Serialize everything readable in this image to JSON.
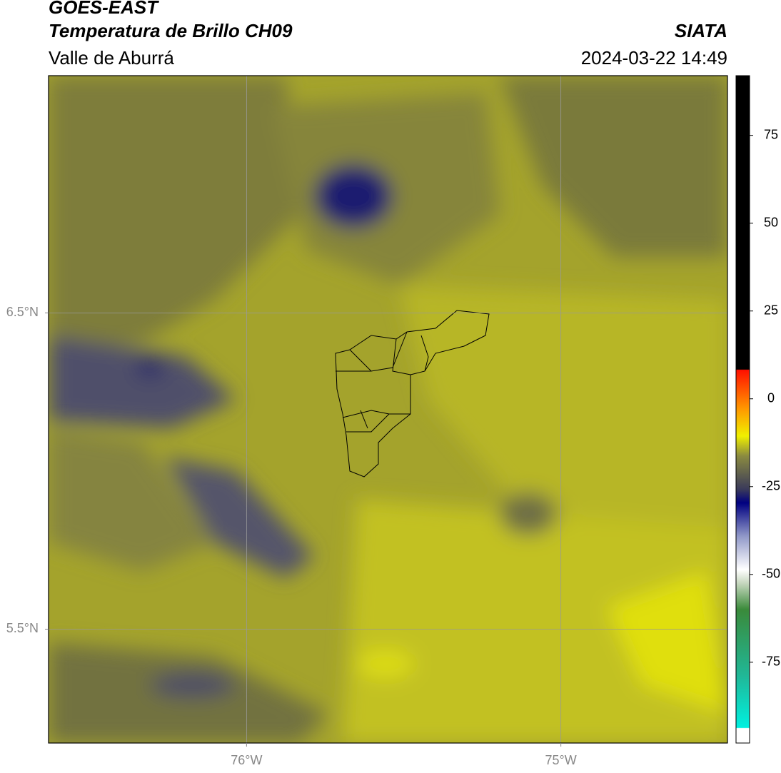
{
  "chart_data": {
    "type": "map",
    "title": "GOES-EAST",
    "subtitle": "Temperatura de Brillo CH09",
    "region": "Valle de Aburrá",
    "source": "SIATA",
    "datetime": "2024-03-22 14:49",
    "xlim": [
      -76.63,
      -74.47
    ],
    "ylim": [
      5.14,
      7.25
    ],
    "xticks": [
      {
        "value": -76,
        "label": "76°W"
      },
      {
        "value": -75,
        "label": "75°W"
      }
    ],
    "yticks": [
      {
        "value": 6.5,
        "label": "6.5°N"
      },
      {
        "value": 5.5,
        "label": "5.5°N"
      }
    ],
    "grid": true,
    "colorbar": {
      "lim": [
        -98,
        92
      ],
      "ticks": [
        -75,
        -50,
        -25,
        0,
        25,
        50,
        75
      ]
    }
  }
}
